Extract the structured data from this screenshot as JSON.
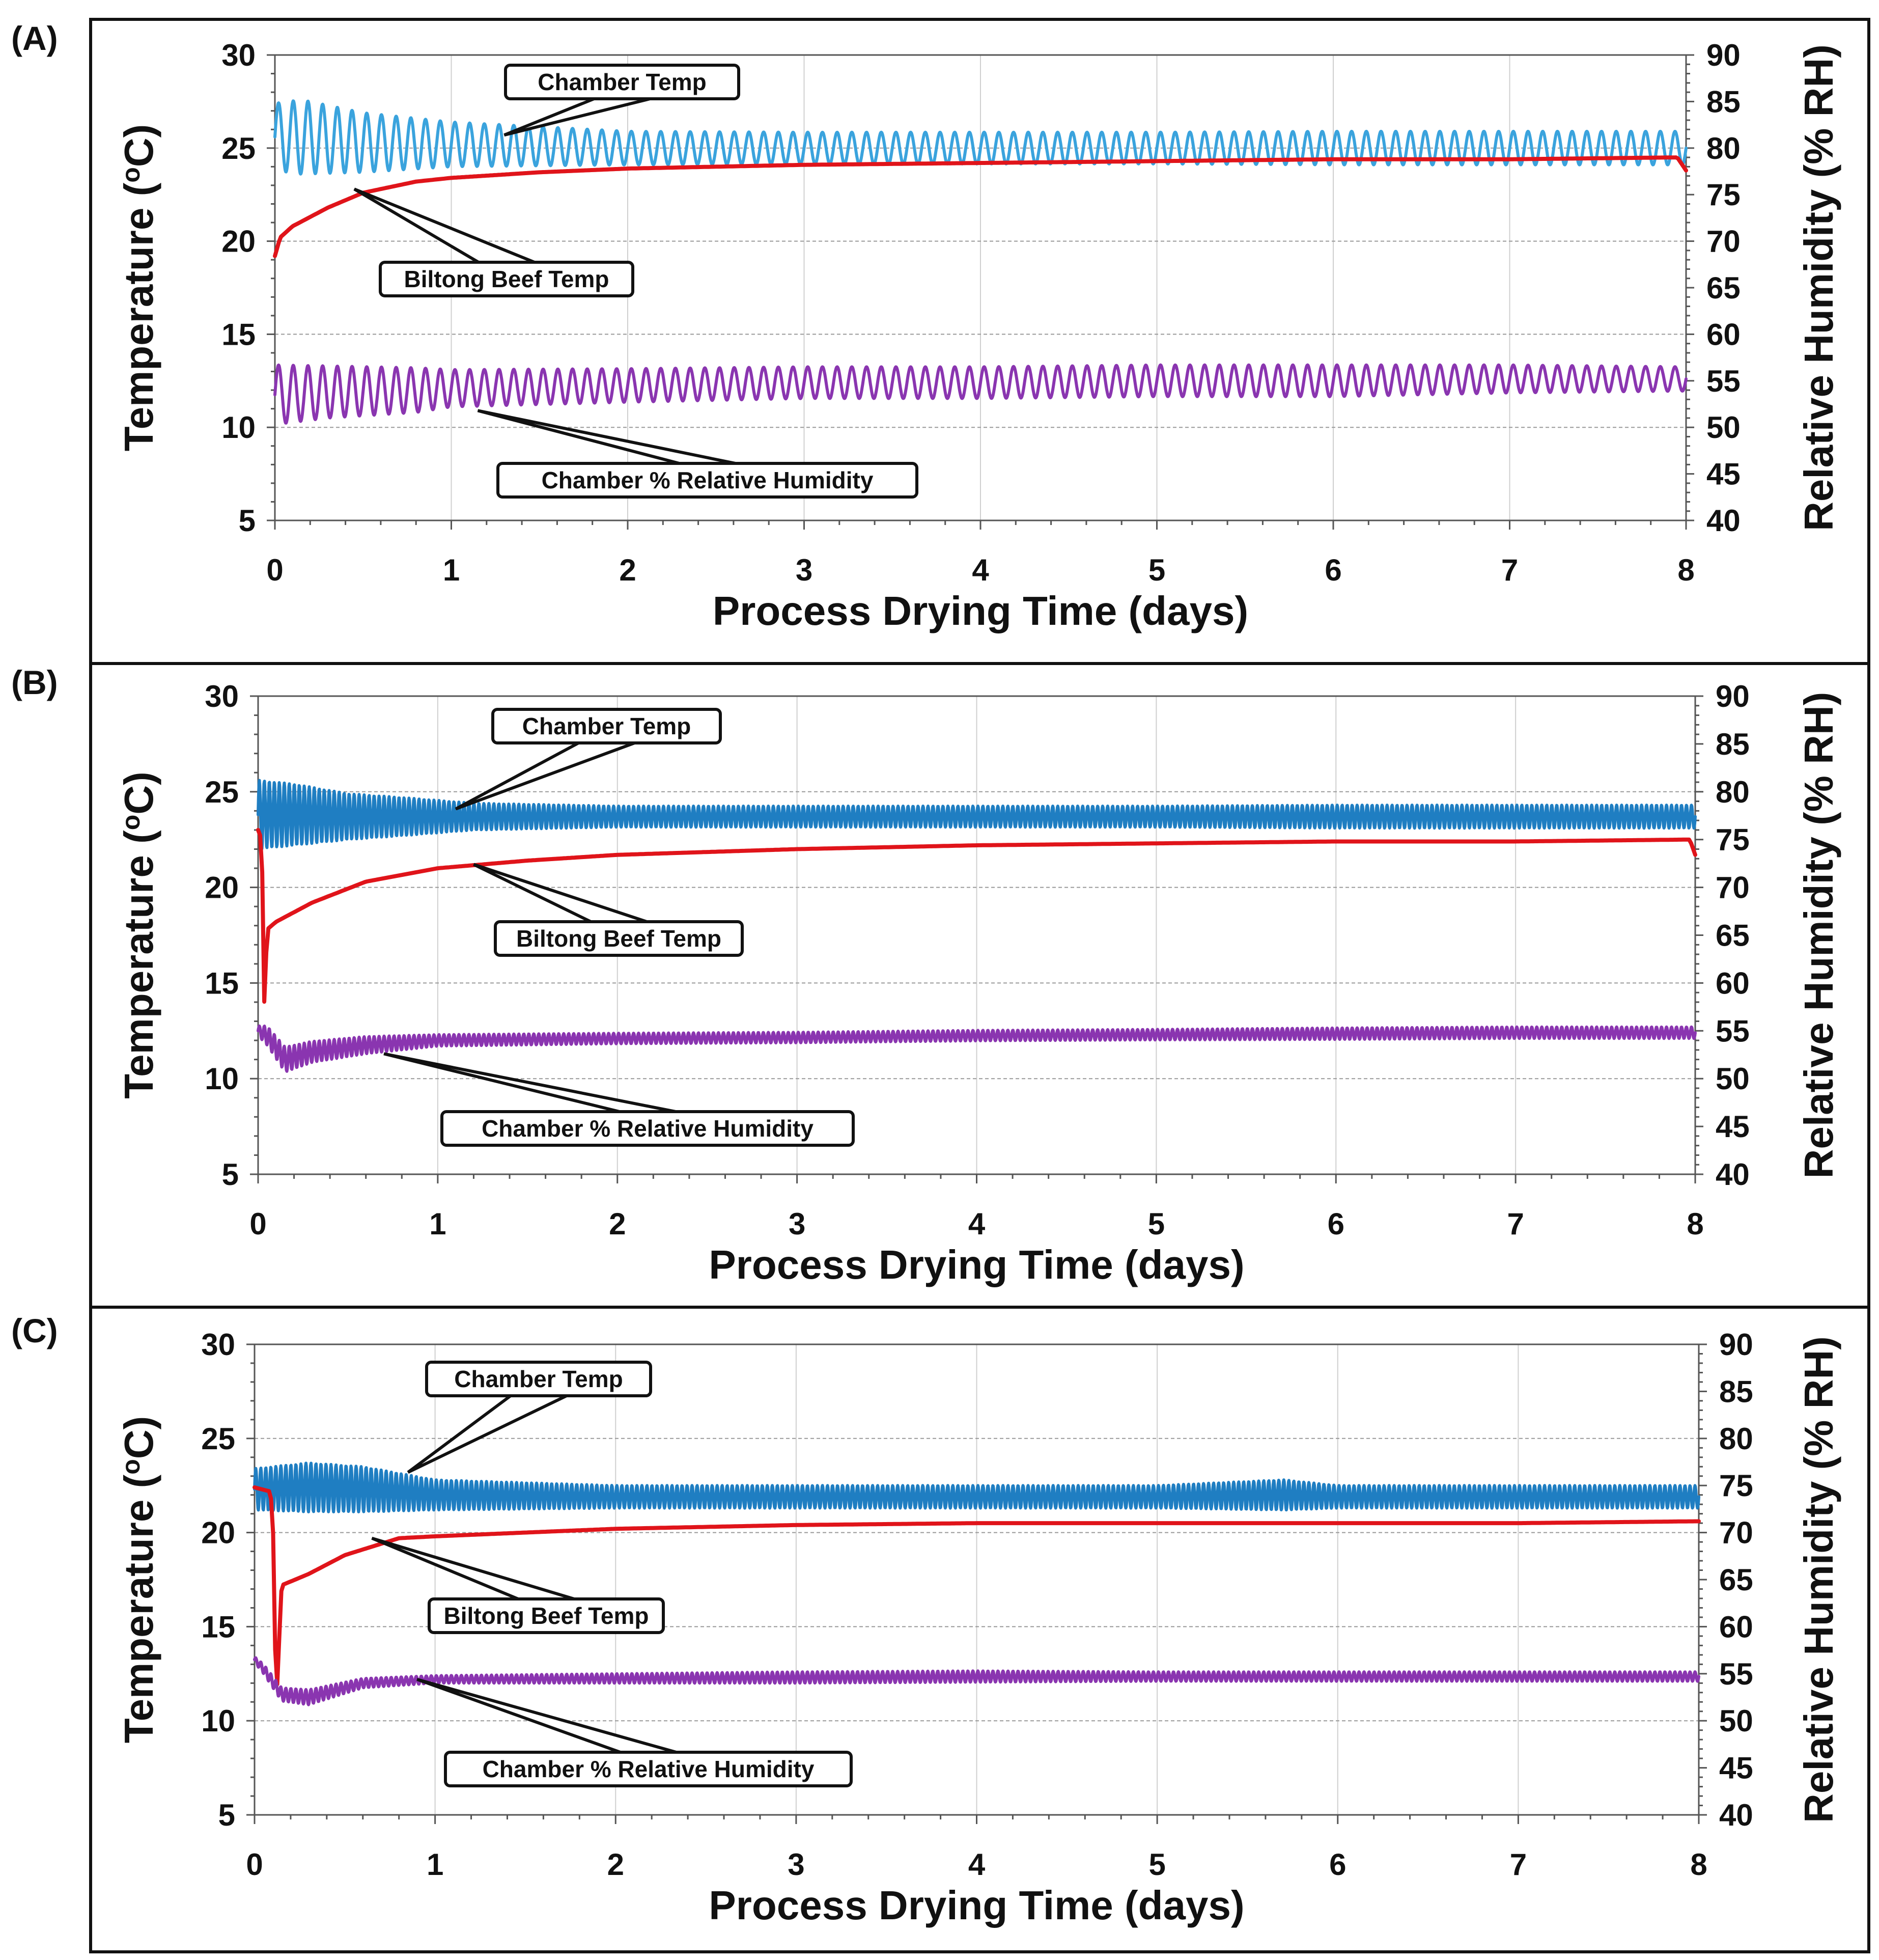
{
  "figure": {
    "colors": {
      "chamber_temp_A": "#3AA3DD",
      "chamber_temp_BC": "#1F7EC2",
      "beef_temp": "#E0141A",
      "humidity": "#8A35B0",
      "grid": "#999999",
      "axis": "#555555"
    }
  },
  "chart_data": [
    {
      "panel": "(A)",
      "type": "line",
      "xlabel": "Process Drying Time (days)",
      "ylabel": "Temperature (°C)",
      "ylabel_main": "Temperature (",
      "ylabel_sup": "o",
      "ylabel_end": "C)",
      "y2label": "Relative Humidity (% RH)",
      "xlim": [
        0,
        8
      ],
      "ylim": [
        5,
        30
      ],
      "y2lim": [
        40,
        90
      ],
      "xticks": [
        "0",
        "1",
        "2",
        "3",
        "4",
        "5",
        "6",
        "7",
        "8"
      ],
      "yticks": [
        "5",
        "10",
        "15",
        "20",
        "25",
        "30"
      ],
      "y2ticks": [
        "40",
        "45",
        "50",
        "55",
        "60",
        "65",
        "70",
        "75",
        "80",
        "85",
        "90"
      ],
      "series": [
        {
          "name": "Chamber Temp",
          "axis": "left",
          "color_key": "chamber_temp_A",
          "freq": 12,
          "x": [
            0,
            0.15,
            0.5,
            1,
            2,
            3,
            4,
            5,
            6,
            7,
            8
          ],
          "center": [
            25.6,
            25.6,
            25.3,
            25.2,
            25.0,
            25.0,
            25.0,
            25.0,
            25.0,
            25.0,
            25.0
          ],
          "amplitude": [
            1.8,
            2.0,
            1.6,
            1.2,
            0.9,
            0.85,
            0.85,
            0.85,
            0.9,
            0.9,
            0.9
          ]
        },
        {
          "name": "Biltong Beef Temp",
          "axis": "left",
          "color_key": "beef_temp",
          "freq": 0,
          "x": [
            0,
            0.03,
            0.1,
            0.3,
            0.5,
            0.8,
            1,
            1.5,
            2,
            3,
            4,
            5,
            6,
            7,
            7.95,
            8
          ],
          "center": [
            19.2,
            20.2,
            20.8,
            21.8,
            22.6,
            23.2,
            23.4,
            23.7,
            23.9,
            24.1,
            24.2,
            24.3,
            24.4,
            24.4,
            24.5,
            23.8
          ],
          "amplitude": [
            0,
            0,
            0,
            0,
            0,
            0,
            0,
            0,
            0,
            0,
            0,
            0,
            0,
            0,
            0,
            0
          ]
        },
        {
          "name": "Chamber % Relative Humidity",
          "axis": "right",
          "color_key": "humidity",
          "freq": 12,
          "x": [
            0,
            0.3,
            0.8,
            1,
            2,
            3,
            4,
            5,
            6,
            7,
            8
          ],
          "center": [
            53.5,
            53.8,
            54.0,
            54.2,
            54.5,
            54.8,
            54.8,
            55.0,
            55.0,
            55.2,
            55.2
          ],
          "amplitude": [
            3.2,
            2.8,
            2.4,
            2.0,
            1.8,
            1.7,
            1.7,
            1.7,
            1.7,
            1.5,
            1.3
          ]
        }
      ],
      "annotations": [
        {
          "text": "Chamber Temp",
          "target": [
            1.3,
            25.7
          ]
        },
        {
          "text": "Biltong Beef Temp",
          "target": [
            0.45,
            22.8
          ]
        },
        {
          "text": "Chamber % Relative Humidity",
          "target": [
            1.15,
            10.9
          ]
        }
      ]
    },
    {
      "panel": "(B)",
      "type": "line",
      "xlabel": "Process Drying Time (days)",
      "ylabel": "Temperature (°C)",
      "ylabel_main": "Temperature (",
      "ylabel_sup": "o",
      "ylabel_end": "C)",
      "y2label": "Relative Humidity (% RH)",
      "xlim": [
        0,
        8
      ],
      "ylim": [
        5,
        30
      ],
      "y2lim": [
        40,
        90
      ],
      "xticks": [
        "0",
        "1",
        "2",
        "3",
        "4",
        "5",
        "6",
        "7",
        "8"
      ],
      "yticks": [
        "5",
        "10",
        "15",
        "20",
        "25",
        "30"
      ],
      "y2ticks": [
        "40",
        "45",
        "50",
        "55",
        "60",
        "65",
        "70",
        "75",
        "80",
        "85",
        "90"
      ],
      "series": [
        {
          "name": "Chamber Temp",
          "axis": "left",
          "color_key": "chamber_temp_BC",
          "freq": 36,
          "x": [
            0,
            0.2,
            0.5,
            0.8,
            1.2,
            2,
            3,
            4,
            5,
            6,
            7,
            8
          ],
          "center": [
            23.8,
            23.8,
            23.7,
            23.7,
            23.7,
            23.7,
            23.7,
            23.7,
            23.7,
            23.7,
            23.7,
            23.7
          ],
          "amplitude": [
            1.8,
            1.6,
            1.2,
            1.0,
            0.7,
            0.55,
            0.55,
            0.55,
            0.55,
            0.6,
            0.6,
            0.6
          ]
        },
        {
          "name": "Biltong Beef Temp",
          "axis": "left",
          "color_key": "beef_temp",
          "freq": 0,
          "x": [
            0,
            0.02,
            0.035,
            0.05,
            0.1,
            0.3,
            0.6,
            1,
            1.5,
            2,
            3,
            4,
            5,
            6,
            7,
            7.97,
            8
          ],
          "center": [
            23.0,
            22.5,
            13.6,
            17.8,
            18.2,
            19.2,
            20.3,
            21.0,
            21.4,
            21.7,
            22.0,
            22.2,
            22.3,
            22.4,
            22.4,
            22.5,
            21.7
          ],
          "amplitude": [
            0,
            0,
            0,
            0,
            0,
            0,
            0,
            0,
            0,
            0,
            0,
            0,
            0,
            0,
            0,
            0,
            0
          ]
        },
        {
          "name": "Chamber % Relative Humidity",
          "axis": "right",
          "color_key": "humidity",
          "freq": 36,
          "x": [
            0,
            0.05,
            0.15,
            0.3,
            0.6,
            1,
            2,
            3,
            4,
            5,
            6,
            7,
            8
          ],
          "center": [
            55.0,
            54.5,
            52.0,
            52.8,
            53.5,
            54.0,
            54.2,
            54.3,
            54.5,
            54.6,
            54.7,
            54.8,
            54.8
          ],
          "amplitude": [
            0.5,
            1.0,
            1.3,
            1.1,
            0.9,
            0.6,
            0.55,
            0.55,
            0.55,
            0.55,
            0.6,
            0.6,
            0.6
          ]
        }
      ],
      "annotations": [
        {
          "text": "Chamber Temp",
          "target": [
            1.1,
            24.1
          ]
        },
        {
          "text": "Biltong Beef Temp",
          "target": [
            1.2,
            21.2
          ]
        },
        {
          "text": "Chamber % Relative Humidity",
          "target": [
            0.7,
            11.3
          ]
        }
      ]
    },
    {
      "panel": "(C)",
      "type": "line",
      "xlabel": "Process Drying Time (days)",
      "ylabel": "Temperature (°C)",
      "ylabel_main": "Temperature (",
      "ylabel_sup": "o",
      "ylabel_end": "C)",
      "y2label": "Relative Humidity (% RH)",
      "xlim": [
        0,
        8
      ],
      "ylim": [
        5,
        30
      ],
      "y2lim": [
        40,
        90
      ],
      "xticks": [
        "0",
        "1",
        "2",
        "3",
        "4",
        "5",
        "6",
        "7",
        "8"
      ],
      "yticks": [
        "5",
        "10",
        "15",
        "20",
        "25",
        "30"
      ],
      "y2ticks": [
        "40",
        "45",
        "50",
        "55",
        "60",
        "65",
        "70",
        "75",
        "80",
        "85",
        "90"
      ],
      "series": [
        {
          "name": "Chamber Temp",
          "axis": "left",
          "color_key": "chamber_temp_BC",
          "freq": 36,
          "x": [
            0,
            0.3,
            0.6,
            1,
            2,
            3,
            4,
            5,
            5.7,
            6,
            7,
            8
          ],
          "center": [
            22.3,
            22.4,
            22.3,
            22.0,
            21.9,
            21.9,
            21.9,
            21.9,
            22.0,
            21.9,
            21.9,
            21.9
          ],
          "amplitude": [
            1.1,
            1.3,
            1.2,
            0.8,
            0.6,
            0.6,
            0.6,
            0.6,
            0.8,
            0.6,
            0.6,
            0.6
          ]
        },
        {
          "name": "Biltong Beef Temp",
          "axis": "left",
          "color_key": "beef_temp",
          "freq": 0,
          "x": [
            0,
            0.08,
            0.1,
            0.12,
            0.15,
            0.3,
            0.5,
            0.8,
            1,
            1.5,
            2,
            3,
            4,
            5,
            6,
            7,
            8
          ],
          "center": [
            22.4,
            22.2,
            21.5,
            10.7,
            17.2,
            17.8,
            18.8,
            19.7,
            19.8,
            20.0,
            20.2,
            20.4,
            20.5,
            20.5,
            20.5,
            20.5,
            20.6
          ],
          "amplitude": [
            0,
            0,
            0,
            0,
            0,
            0,
            0,
            0,
            0,
            0,
            0,
            0,
            0,
            0,
            0,
            0,
            0
          ]
        },
        {
          "name": "Chamber % Relative Humidity",
          "axis": "right",
          "color_key": "humidity",
          "freq": 36,
          "x": [
            0,
            0.05,
            0.15,
            0.3,
            0.6,
            1,
            2,
            3,
            4,
            5,
            6,
            7,
            8
          ],
          "center": [
            56.5,
            55.5,
            52.8,
            52.5,
            54.0,
            54.4,
            54.5,
            54.6,
            54.7,
            54.7,
            54.7,
            54.7,
            54.7
          ],
          "amplitude": [
            0.3,
            0.5,
            0.7,
            0.8,
            0.5,
            0.4,
            0.5,
            0.6,
            0.6,
            0.5,
            0.5,
            0.5,
            0.5
          ]
        }
      ],
      "annotations": [
        {
          "text": "Chamber Temp",
          "target": [
            0.85,
            23.2
          ]
        },
        {
          "text": "Biltong Beef Temp",
          "target": [
            0.65,
            19.7
          ]
        },
        {
          "text": "Chamber % Relative Humidity",
          "target": [
            0.9,
            12.2
          ]
        }
      ]
    }
  ]
}
